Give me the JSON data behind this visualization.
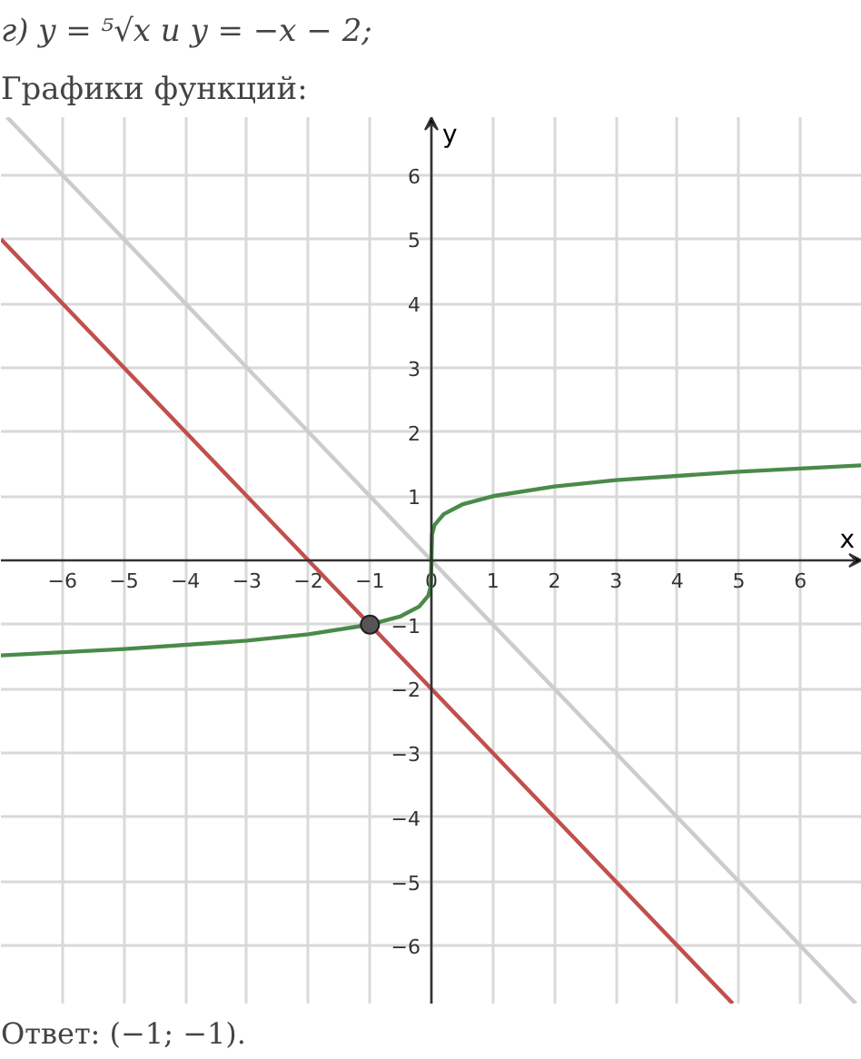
{
  "chart_data": {
    "type": "line",
    "title": "г) y = ⁵√x  и  y = −x − 2;",
    "subtitle": "Графики функций:",
    "xlabel": "x",
    "ylabel": "y",
    "annotations": [
      "Ответ: (−1; −1)."
    ],
    "xlim": [
      -7,
      7
    ],
    "ylim": [
      -6.9,
      6.9
    ],
    "xticks": [
      -6,
      -5,
      -4,
      -3,
      -2,
      -1,
      0,
      1,
      2,
      3,
      4,
      5,
      6
    ],
    "yticks": [
      -6,
      -5,
      -4,
      -3,
      -2,
      -1,
      1,
      2,
      3,
      4,
      5,
      6
    ],
    "grid": true,
    "line_style": "solid",
    "series": [
      {
        "color": "#cccccc",
        "x": [
          -6.9,
          6.9
        ],
        "values": [
          6.9,
          -6.9
        ]
      },
      {
        "color": "#c0504d",
        "x": [
          -7,
          4.9
        ],
        "values": [
          5,
          -6.9
        ]
      },
      {
        "color": "#4a8a4a",
        "x": [
          -7,
          -5,
          -3,
          -2,
          -1,
          -0.5,
          -0.2,
          -0.05,
          -0.01,
          0,
          0.01,
          0.05,
          0.2,
          0.5,
          1,
          2,
          3,
          5,
          7
        ],
        "values": [
          -1.48,
          -1.38,
          -1.25,
          -1.15,
          -1,
          -0.87,
          -0.72,
          -0.55,
          -0.4,
          0,
          0.4,
          0.55,
          0.72,
          0.87,
          1,
          1.15,
          1.25,
          1.38,
          1.48
        ]
      },
      {
        "type": "scatter",
        "marker": "circle",
        "color": "#555555",
        "x": [
          -1
        ],
        "values": [
          -1
        ]
      }
    ]
  }
}
